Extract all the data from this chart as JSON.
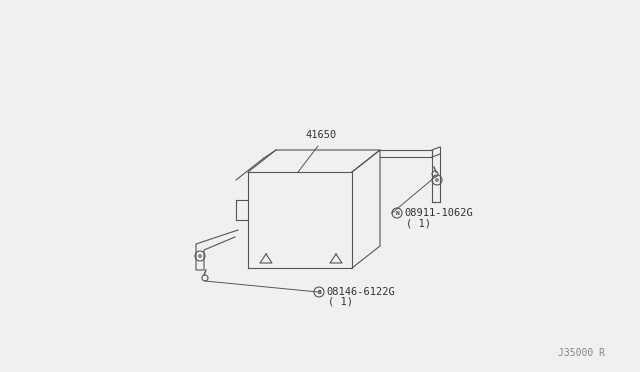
{
  "bg_color": "#f0f0f0",
  "line_color": "#555555",
  "text_color": "#333333",
  "part_number_41650": "41650",
  "part_number_bolt1": "08911-1062G",
  "part_number_bolt1_qty": "( 1)",
  "part_number_bolt2": "08146-6122G",
  "part_number_bolt2_qty": "( 1)",
  "watermark": "J35000 R"
}
